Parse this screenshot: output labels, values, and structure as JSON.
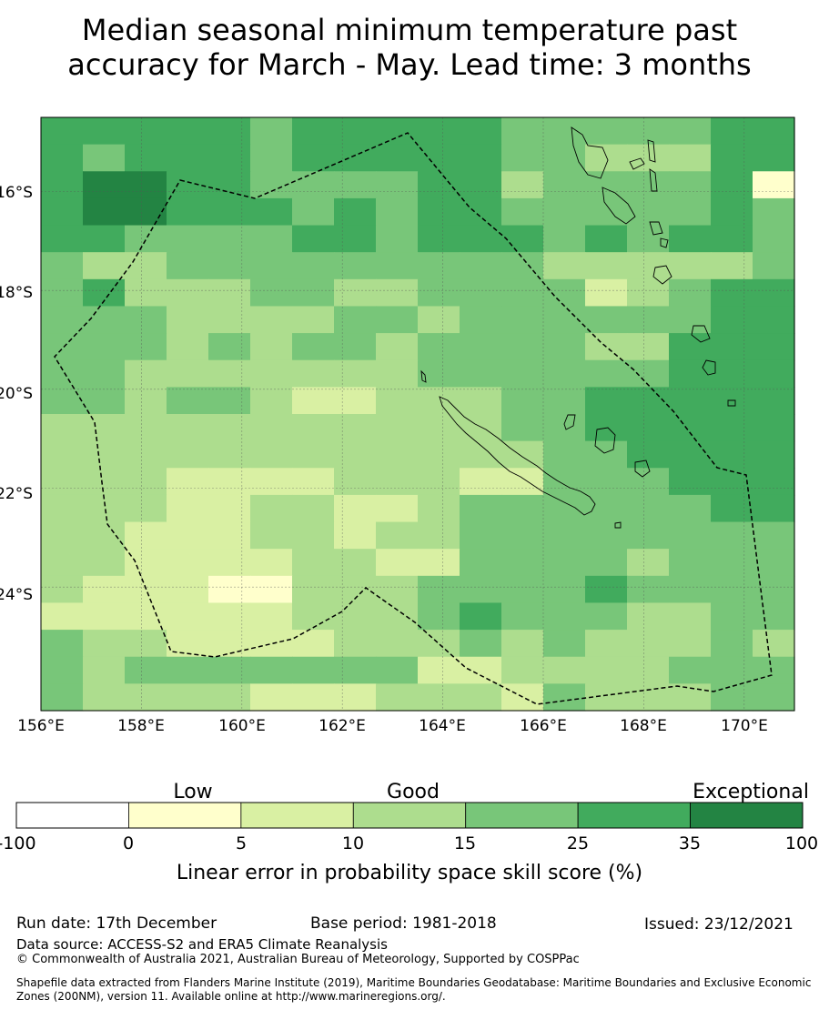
{
  "title": {
    "line1": "Median seasonal minimum temperature past",
    "line2": "accuracy for March - May. Lead time: 3 months"
  },
  "map": {
    "lon_range": [
      156,
      171
    ],
    "lat_range": [
      -26.5,
      -14.5
    ],
    "lon_tick_labels": [
      "156°E",
      "158°E",
      "160°E",
      "162°E",
      "164°E",
      "166°E",
      "168°E",
      "170°E"
    ],
    "lat_tick_labels": [
      "16°S",
      "18°S",
      "20°S",
      "22°S",
      "24°S"
    ],
    "grid_resolution_deg": 0.83,
    "grid_legend": "1=0-5, 2=5-10, 3=10-15, 4=15-25, 5=25-35, 6=35-100",
    "grid": [
      "555554555554444455",
      "545554555554433355",
      "566554444553444451",
      "566555454554444454",
      "554444554555454554",
      "433444444444333334",
      "453334433444423455",
      "444333344344444455",
      "444343443444433555",
      "443333333444444555",
      "443443223334455555",
      "333333333334455555",
      "333333333333445555",
      "333222233322444555",
      "333223322344444455",
      "332223323344444444",
      "332222332244443444",
      "322211333444454444",
      "222222333454443344",
      "433222233343433343",
      "434444444223333444",
      "433332223332433344"
    ],
    "eez_label": "EEZ boundary"
  },
  "legend": {
    "categories": [
      "Low",
      "Good",
      "Exceptional"
    ],
    "bin_edges": [
      "-100",
      "0",
      "5",
      "10",
      "15",
      "25",
      "35",
      "100"
    ],
    "colors": [
      "#ffffff",
      "#ffffcc",
      "#d9f0a3",
      "#addd8e",
      "#78c679",
      "#41ab5d",
      "#238443"
    ],
    "label": "Linear error in probability space skill score (%)"
  },
  "footer": {
    "run_date": "Run date: 17th December",
    "base_period": "Base period: 1981-2018",
    "issued": "Issued: 23/12/2021",
    "data_source": "Data source: ACCESS-S2 and ERA5 Climate Reanalysis",
    "copyright": "© Commonwealth of Australia 2021, Australian Bureau of Meteorology, Supported by COSPPac",
    "shapefile_line1": "Shapefile data extracted from Flanders Marine Institute (2019), Maritime Boundaries Geodatabase: Maritime Boundaries and Exclusive Economic",
    "shapefile_line2": "Zones (200NM), version 11. Available online at http://www.marineregions.org/."
  }
}
